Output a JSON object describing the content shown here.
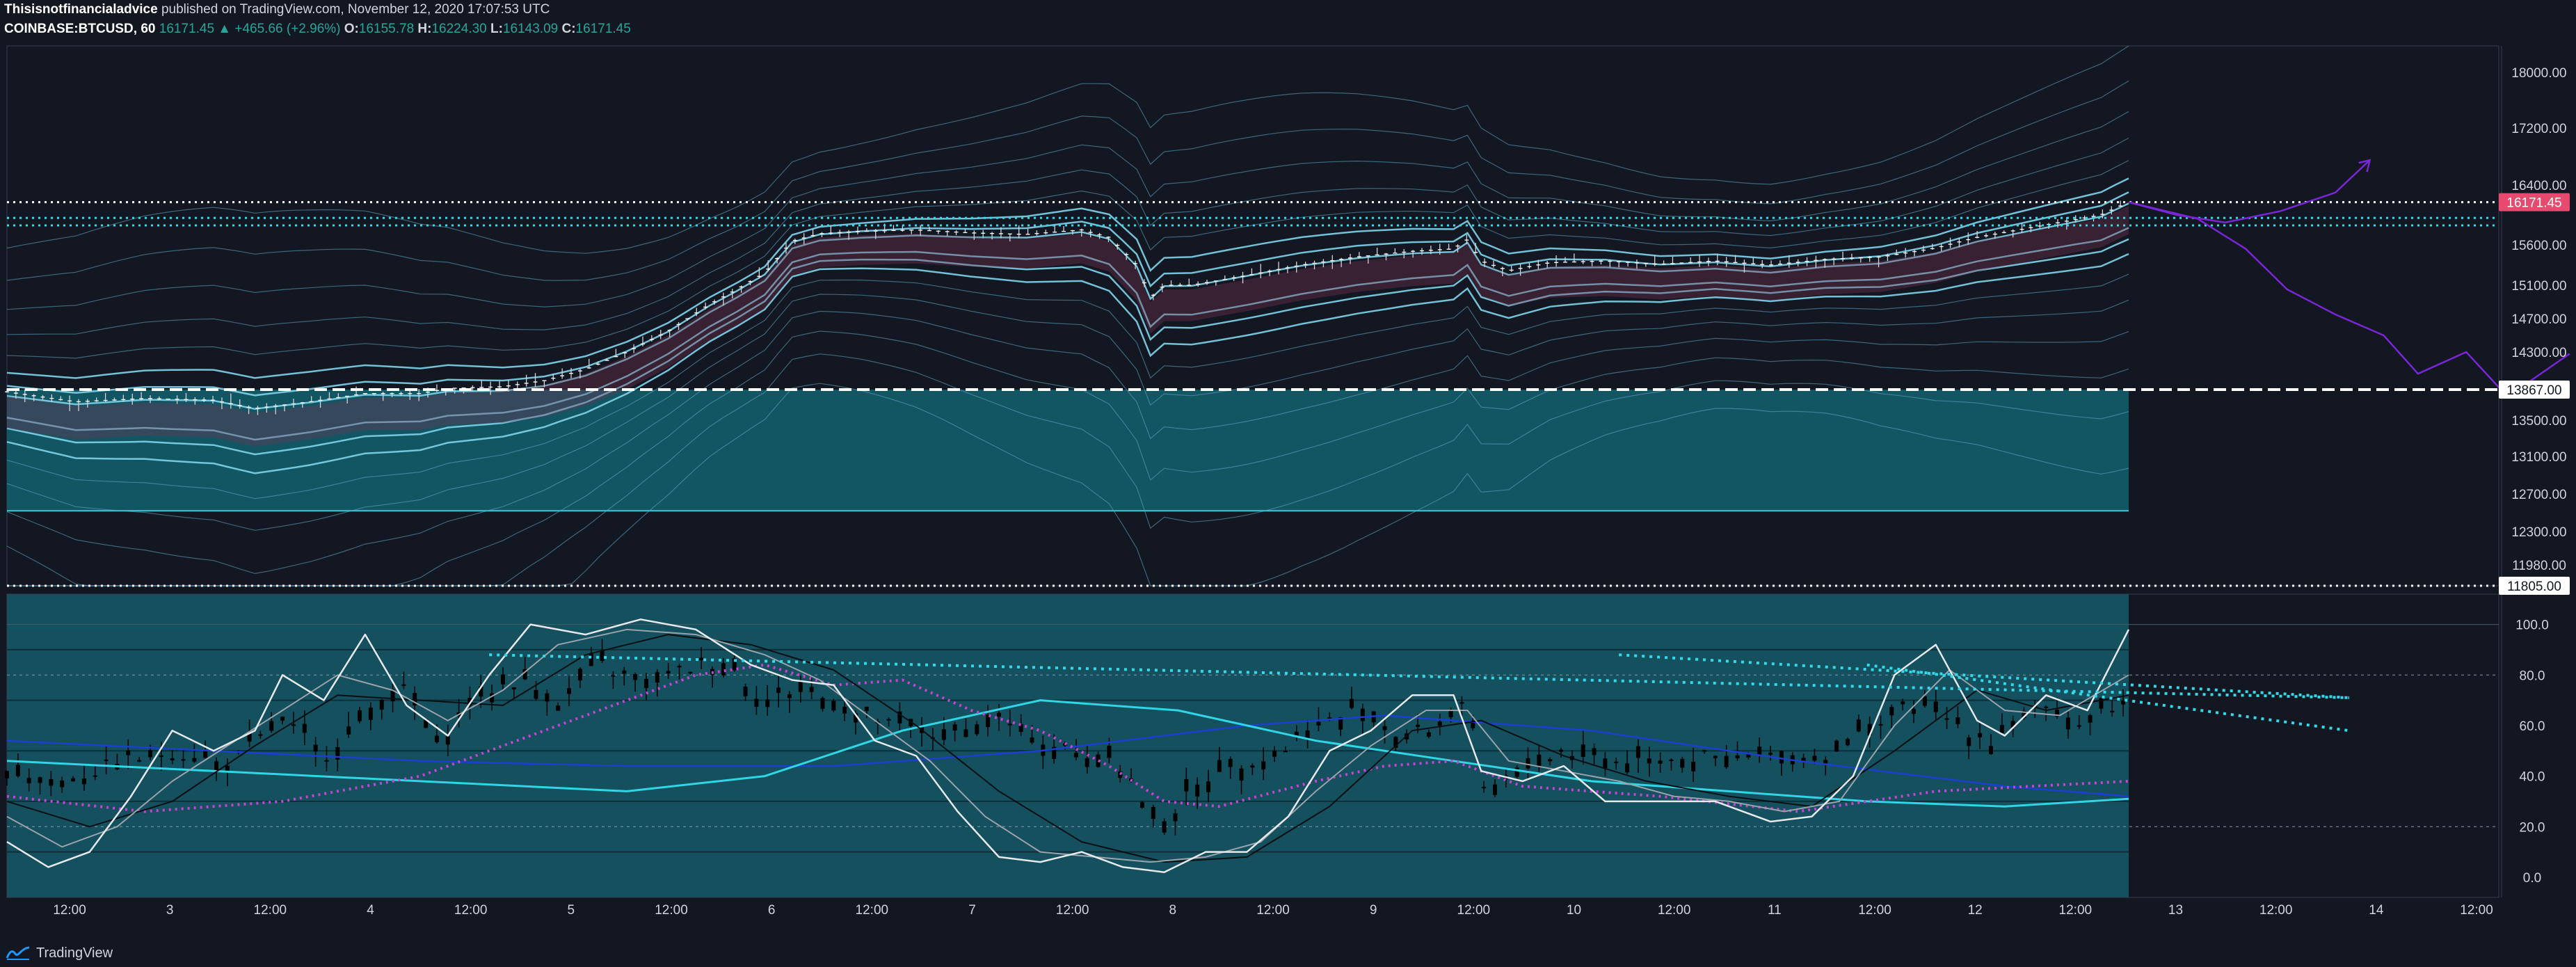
{
  "header": {
    "author": "Thisisnotfinancialadvice",
    "published": "published on TradingView.com, November 12, 2020 17:07:53 UTC",
    "symbol": "COINBASE:BTCUSD, 60",
    "last": "16171.45",
    "change": "▲ +465.66 (+2.96%)",
    "o_label": "O:",
    "o": "16155.78",
    "h_label": "H:",
    "h": "16224.30",
    "l_label": "L:",
    "l": "16143.09",
    "c_label": "C:",
    "c": "16171.45"
  },
  "footer": {
    "brand": "TradingView"
  },
  "colors": {
    "background": "#131722",
    "band_fill": "#13606f",
    "band_lines": "#5fa8c9",
    "oscillator_bg": "#14505e",
    "price_tag": "#e84a6f",
    "cyan": "#33d9e8",
    "purple": "#7b26d6",
    "magenta": "#c445d1"
  },
  "chart_data": [
    {
      "type": "candlestick",
      "name": "price",
      "price_axis_ticks": [
        "18000.00",
        "17200.00",
        "16400.00",
        "15600.00",
        "15100.00",
        "14700.00",
        "14300.00",
        "13500.00",
        "13100.00",
        "12700.00",
        "12300.00",
        "11980.00"
      ],
      "price_tags": [
        {
          "label": "16171.45",
          "value": 16171.45,
          "style": "current"
        },
        {
          "label": "13867.00",
          "value": 13867,
          "style": "level"
        },
        {
          "label": "11805.00",
          "value": 11805,
          "style": "level"
        }
      ],
      "ylim": [
        11805,
        18300
      ],
      "x_ticks": [
        "12:00",
        "3",
        "12:00",
        "4",
        "12:00",
        "5",
        "12:00",
        "6",
        "12:00",
        "7",
        "12:00",
        "8",
        "12:00",
        "9",
        "12:00",
        "10",
        "12:00",
        "11",
        "12:00",
        "12",
        "12:00",
        "13",
        "12:00",
        "14",
        "12:00"
      ],
      "close_path": [
        [
          0,
          13840
        ],
        [
          10,
          13720
        ],
        [
          20,
          13760
        ],
        [
          30,
          13740
        ],
        [
          36,
          13640
        ],
        [
          44,
          13720
        ],
        [
          52,
          13820
        ],
        [
          60,
          13820
        ],
        [
          64,
          13880
        ],
        [
          72,
          13900
        ],
        [
          78,
          13970
        ],
        [
          84,
          14100
        ],
        [
          90,
          14300
        ],
        [
          96,
          14550
        ],
        [
          102,
          14870
        ],
        [
          106,
          15050
        ],
        [
          110,
          15250
        ],
        [
          114,
          15650
        ],
        [
          118,
          15750
        ],
        [
          124,
          15780
        ],
        [
          132,
          15800
        ],
        [
          140,
          15760
        ],
        [
          148,
          15740
        ],
        [
          156,
          15800
        ],
        [
          160,
          15700
        ],
        [
          164,
          15350
        ],
        [
          166,
          14950
        ],
        [
          168,
          15100
        ],
        [
          172,
          15100
        ],
        [
          180,
          15220
        ],
        [
          188,
          15350
        ],
        [
          196,
          15450
        ],
        [
          204,
          15520
        ],
        [
          210,
          15550
        ],
        [
          212,
          15670
        ],
        [
          214,
          15400
        ],
        [
          218,
          15280
        ],
        [
          224,
          15380
        ],
        [
          232,
          15400
        ],
        [
          240,
          15360
        ],
        [
          248,
          15400
        ],
        [
          256,
          15350
        ],
        [
          264,
          15420
        ],
        [
          272,
          15450
        ],
        [
          280,
          15560
        ],
        [
          286,
          15700
        ],
        [
          292,
          15800
        ],
        [
          298,
          15900
        ],
        [
          304,
          16000
        ],
        [
          308,
          16171
        ]
      ],
      "levels": [
        {
          "value": 16171.45,
          "style": "dotted",
          "color": "#ffffff"
        },
        {
          "value": 15960,
          "style": "dotted",
          "color": "#33d9e8"
        },
        {
          "value": 15860,
          "style": "dotted",
          "color": "#33d9e8"
        },
        {
          "value": 13867,
          "style": "dashed",
          "color": "#ffffff"
        },
        {
          "value": 11805,
          "style": "dotted",
          "color": "#ffffff"
        }
      ],
      "zone": {
        "from": 12520,
        "to": 13867
      },
      "projection_up": [
        [
          308,
          16171
        ],
        [
          315,
          16000
        ],
        [
          322,
          15900
        ],
        [
          330,
          16050
        ],
        [
          338,
          16300
        ],
        [
          343,
          16750
        ]
      ],
      "projection_down": [
        [
          308,
          16171
        ],
        [
          318,
          15950
        ],
        [
          325,
          15550
        ],
        [
          331,
          15050
        ],
        [
          338,
          14750
        ],
        [
          345,
          14500
        ],
        [
          350,
          14050
        ],
        [
          357,
          14300
        ],
        [
          362,
          13870
        ],
        [
          366,
          13950
        ],
        [
          372,
          14280
        ]
      ]
    },
    {
      "type": "line",
      "name": "oscillator",
      "axis_ticks": [
        "100.0",
        "80.0",
        "60.0",
        "40.0",
        "20.0",
        "0.0"
      ],
      "ylim": [
        -8,
        112
      ],
      "candles_path": [
        [
          0,
          42
        ],
        [
          8,
          38
        ],
        [
          16,
          45
        ],
        [
          24,
          50
        ],
        [
          32,
          44
        ],
        [
          40,
          62
        ],
        [
          46,
          48
        ],
        [
          52,
          66
        ],
        [
          58,
          74
        ],
        [
          62,
          52
        ],
        [
          68,
          72
        ],
        [
          74,
          78
        ],
        [
          80,
          70
        ],
        [
          86,
          84
        ],
        [
          92,
          76
        ],
        [
          98,
          82
        ],
        [
          104,
          86
        ],
        [
          110,
          70
        ],
        [
          116,
          74
        ],
        [
          122,
          66
        ],
        [
          128,
          60
        ],
        [
          136,
          56
        ],
        [
          144,
          62
        ],
        [
          150,
          54
        ],
        [
          156,
          48
        ],
        [
          160,
          50
        ],
        [
          164,
          34
        ],
        [
          166,
          20
        ],
        [
          170,
          28
        ],
        [
          176,
          44
        ],
        [
          184,
          48
        ],
        [
          190,
          60
        ],
        [
          196,
          66
        ],
        [
          202,
          56
        ],
        [
          208,
          60
        ],
        [
          212,
          72
        ],
        [
          214,
          32
        ],
        [
          218,
          40
        ],
        [
          226,
          50
        ],
        [
          234,
          46
        ],
        [
          242,
          48
        ],
        [
          250,
          46
        ],
        [
          258,
          48
        ],
        [
          264,
          48
        ],
        [
          270,
          58
        ],
        [
          276,
          68
        ],
        [
          282,
          62
        ],
        [
          288,
          54
        ],
        [
          294,
          66
        ],
        [
          300,
          62
        ],
        [
          308,
          70
        ]
      ],
      "k_path": [
        [
          0,
          14
        ],
        [
          6,
          4
        ],
        [
          12,
          10
        ],
        [
          18,
          32
        ],
        [
          24,
          58
        ],
        [
          30,
          50
        ],
        [
          36,
          58
        ],
        [
          40,
          80
        ],
        [
          46,
          70
        ],
        [
          52,
          96
        ],
        [
          58,
          68
        ],
        [
          64,
          56
        ],
        [
          70,
          80
        ],
        [
          76,
          100
        ],
        [
          84,
          96
        ],
        [
          92,
          102
        ],
        [
          100,
          98
        ],
        [
          108,
          84
        ],
        [
          114,
          78
        ],
        [
          120,
          76
        ],
        [
          126,
          54
        ],
        [
          132,
          48
        ],
        [
          138,
          26
        ],
        [
          144,
          8
        ],
        [
          150,
          6
        ],
        [
          156,
          10
        ],
        [
          162,
          4
        ],
        [
          168,
          2
        ],
        [
          174,
          10
        ],
        [
          180,
          10
        ],
        [
          186,
          24
        ],
        [
          192,
          50
        ],
        [
          198,
          58
        ],
        [
          204,
          72
        ],
        [
          210,
          72
        ],
        [
          214,
          42
        ],
        [
          220,
          38
        ],
        [
          226,
          44
        ],
        [
          232,
          30
        ],
        [
          240,
          30
        ],
        [
          248,
          30
        ],
        [
          256,
          22
        ],
        [
          262,
          24
        ],
        [
          268,
          40
        ],
        [
          274,
          80
        ],
        [
          280,
          92
        ],
        [
          286,
          62
        ],
        [
          290,
          56
        ],
        [
          296,
          72
        ],
        [
          302,
          66
        ],
        [
          308,
          98
        ]
      ],
      "d_path": [
        [
          0,
          24
        ],
        [
          8,
          12
        ],
        [
          16,
          20
        ],
        [
          24,
          38
        ],
        [
          32,
          52
        ],
        [
          40,
          66
        ],
        [
          48,
          80
        ],
        [
          56,
          74
        ],
        [
          64,
          62
        ],
        [
          72,
          74
        ],
        [
          80,
          92
        ],
        [
          90,
          98
        ],
        [
          100,
          96
        ],
        [
          110,
          88
        ],
        [
          118,
          78
        ],
        [
          126,
          62
        ],
        [
          134,
          46
        ],
        [
          142,
          24
        ],
        [
          150,
          10
        ],
        [
          158,
          8
        ],
        [
          166,
          6
        ],
        [
          174,
          8
        ],
        [
          182,
          14
        ],
        [
          190,
          34
        ],
        [
          198,
          52
        ],
        [
          206,
          66
        ],
        [
          212,
          66
        ],
        [
          218,
          46
        ],
        [
          226,
          42
        ],
        [
          234,
          38
        ],
        [
          242,
          32
        ],
        [
          250,
          30
        ],
        [
          258,
          26
        ],
        [
          266,
          30
        ],
        [
          274,
          60
        ],
        [
          282,
          82
        ],
        [
          290,
          66
        ],
        [
          298,
          64
        ],
        [
          308,
          80
        ]
      ],
      "signal_black": [
        [
          0,
          30
        ],
        [
          12,
          20
        ],
        [
          24,
          30
        ],
        [
          36,
          52
        ],
        [
          48,
          72
        ],
        [
          60,
          70
        ],
        [
          72,
          68
        ],
        [
          84,
          88
        ],
        [
          96,
          96
        ],
        [
          108,
          92
        ],
        [
          120,
          82
        ],
        [
          132,
          60
        ],
        [
          144,
          34
        ],
        [
          156,
          14
        ],
        [
          168,
          6
        ],
        [
          180,
          8
        ],
        [
          192,
          28
        ],
        [
          204,
          58
        ],
        [
          214,
          62
        ],
        [
          226,
          48
        ],
        [
          238,
          38
        ],
        [
          250,
          32
        ],
        [
          262,
          28
        ],
        [
          274,
          50
        ],
        [
          286,
          74
        ],
        [
          296,
          66
        ],
        [
          308,
          72
        ]
      ],
      "ma_blue": [
        [
          0,
          54
        ],
        [
          30,
          50
        ],
        [
          60,
          46
        ],
        [
          90,
          44
        ],
        [
          120,
          44
        ],
        [
          150,
          50
        ],
        [
          180,
          60
        ],
        [
          200,
          64
        ],
        [
          230,
          58
        ],
        [
          260,
          46
        ],
        [
          290,
          36
        ],
        [
          308,
          32
        ]
      ],
      "ma_cyan": [
        [
          0,
          46
        ],
        [
          30,
          42
        ],
        [
          60,
          38
        ],
        [
          90,
          34
        ],
        [
          110,
          40
        ],
        [
          130,
          58
        ],
        [
          150,
          70
        ],
        [
          170,
          66
        ],
        [
          190,
          54
        ],
        [
          210,
          46
        ],
        [
          230,
          38
        ],
        [
          250,
          34
        ],
        [
          270,
          30
        ],
        [
          290,
          28
        ],
        [
          308,
          31
        ]
      ],
      "rsi_magenta": [
        [
          0,
          32
        ],
        [
          20,
          26
        ],
        [
          40,
          30
        ],
        [
          60,
          40
        ],
        [
          80,
          60
        ],
        [
          100,
          80
        ],
        [
          110,
          84
        ],
        [
          120,
          76
        ],
        [
          130,
          78
        ],
        [
          140,
          66
        ],
        [
          150,
          58
        ],
        [
          160,
          44
        ],
        [
          168,
          30
        ],
        [
          176,
          28
        ],
        [
          190,
          38
        ],
        [
          200,
          44
        ],
        [
          210,
          46
        ],
        [
          220,
          36
        ],
        [
          240,
          32
        ],
        [
          260,
          26
        ],
        [
          280,
          34
        ],
        [
          308,
          38
        ]
      ],
      "trendlines": [
        {
          "from": [
            70,
            88
          ],
          "to": [
            340,
            71
          ]
        },
        {
          "from": [
            234,
            88
          ],
          "to": [
            340,
            71
          ]
        },
        {
          "from": [
            270,
            84
          ],
          "to": [
            340,
            58
          ]
        }
      ]
    }
  ]
}
